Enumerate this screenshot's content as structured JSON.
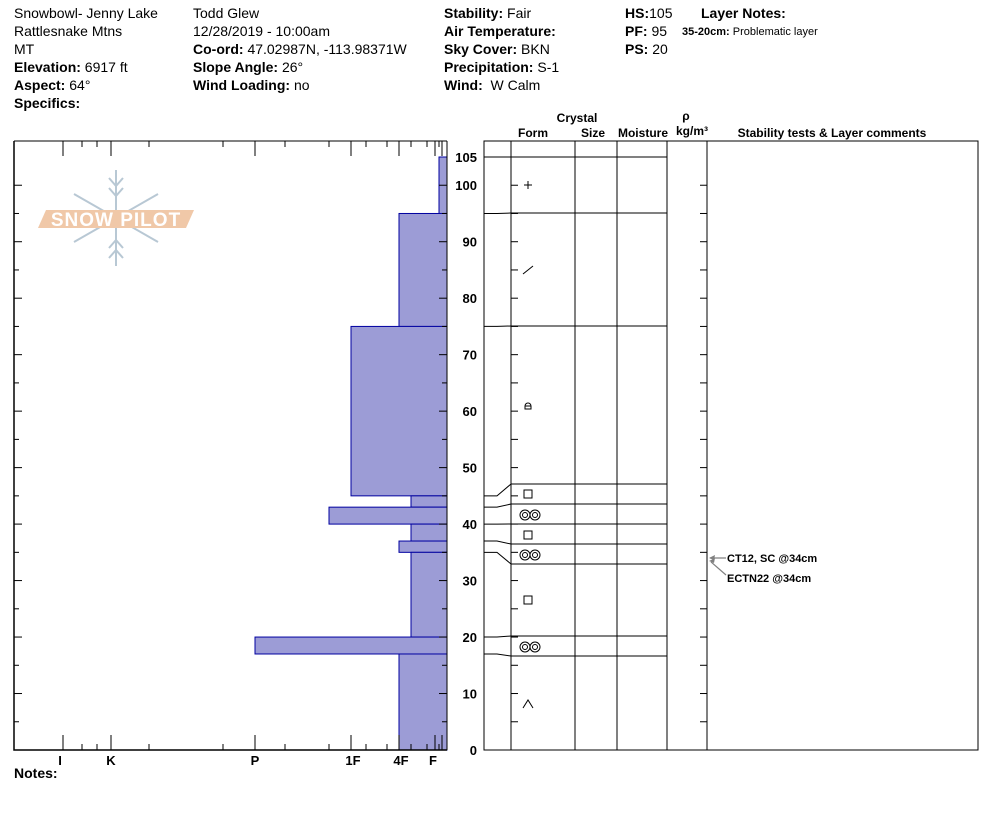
{
  "header": {
    "col1": {
      "location": "Snowbowl- Jenny Lake",
      "range": "Rattlesnake Mtns",
      "state": "MT",
      "elevation_label": "Elevation:",
      "elevation": "6917 ft",
      "aspect_label": "Aspect:",
      "aspect": "64°",
      "specifics_label": "Specifics:"
    },
    "col2": {
      "observer": "Todd Glew",
      "datetime": "12/28/2019 - 10:00am",
      "coord_label": "Co-ord:",
      "coord": "47.02987N, -113.98371W",
      "slope_label": "Slope Angle:",
      "slope": "26°",
      "wind_loading_label": "Wind Loading:",
      "wind_loading": "no"
    },
    "col3": {
      "stability_label": "Stability:",
      "stability": "Fair",
      "air_temp_label": "Air Temperature:",
      "sky_label": "Sky Cover:",
      "sky": "BKN",
      "precip_label": "Precipitation:",
      "precip": "S-1",
      "wind_label": "Wind:",
      "wind": "W Calm"
    },
    "col4": {
      "hs_label": "HS:",
      "hs": "105",
      "pf_label": "PF:",
      "pf": "95",
      "ps_label": "PS:",
      "ps": "20"
    },
    "layer_notes": {
      "title": "Layer Notes:",
      "range": "35-20cm:",
      "note": "Problematic layer"
    }
  },
  "columns": {
    "crystal": "Crystal",
    "form": "Form",
    "size": "Size",
    "moisture": "Moisture",
    "rho": "ρ",
    "density": "kg/m³",
    "comments": "Stability tests & Layer comments"
  },
  "logo_text": "SNOW PILOT",
  "notes_label": "Notes:",
  "colors": {
    "layer_fill": "#9c9cd6",
    "layer_stroke": "#0000a0",
    "logo_orange": "#f0c8a8",
    "logo_blue": "#b8c8d4",
    "arrow": "#808080"
  },
  "chart_data": {
    "type": "snow-profile",
    "depth_axis": {
      "range": [
        0,
        105
      ],
      "ticks": [
        0,
        10,
        20,
        30,
        40,
        50,
        60,
        70,
        80,
        90,
        100,
        105
      ]
    },
    "hardness_axis": {
      "ticks": [
        "I",
        "K",
        "P",
        "1F",
        "4F",
        "F"
      ]
    },
    "layers": [
      {
        "top": 105,
        "bottom": 95,
        "hardness": "F-",
        "form": "plus"
      },
      {
        "top": 95,
        "bottom": 75,
        "hardness": "4F",
        "form": "slash"
      },
      {
        "top": 75,
        "bottom": 45,
        "hardness": "1F",
        "form": "rounded-facet"
      },
      {
        "top": 45,
        "bottom": 43,
        "hardness": "F+",
        "form": "square"
      },
      {
        "top": 43,
        "bottom": 40,
        "hardness": "1F+",
        "form": "double-circle"
      },
      {
        "top": 40,
        "bottom": 37,
        "hardness": "F+",
        "form": "square"
      },
      {
        "top": 37,
        "bottom": 35,
        "hardness": "4F",
        "form": "double-circle"
      },
      {
        "top": 35,
        "bottom": 20,
        "hardness": "F+",
        "form": "square"
      },
      {
        "top": 20,
        "bottom": 17,
        "hardness": "P",
        "form": "double-circle"
      },
      {
        "top": 17,
        "bottom": 0,
        "hardness": "4F",
        "form": "caret"
      }
    ],
    "stability_tests": [
      {
        "label": "CT12, SC @34cm",
        "depth": 34
      },
      {
        "label": "ECTN22 @34cm",
        "depth": 34
      }
    ]
  }
}
